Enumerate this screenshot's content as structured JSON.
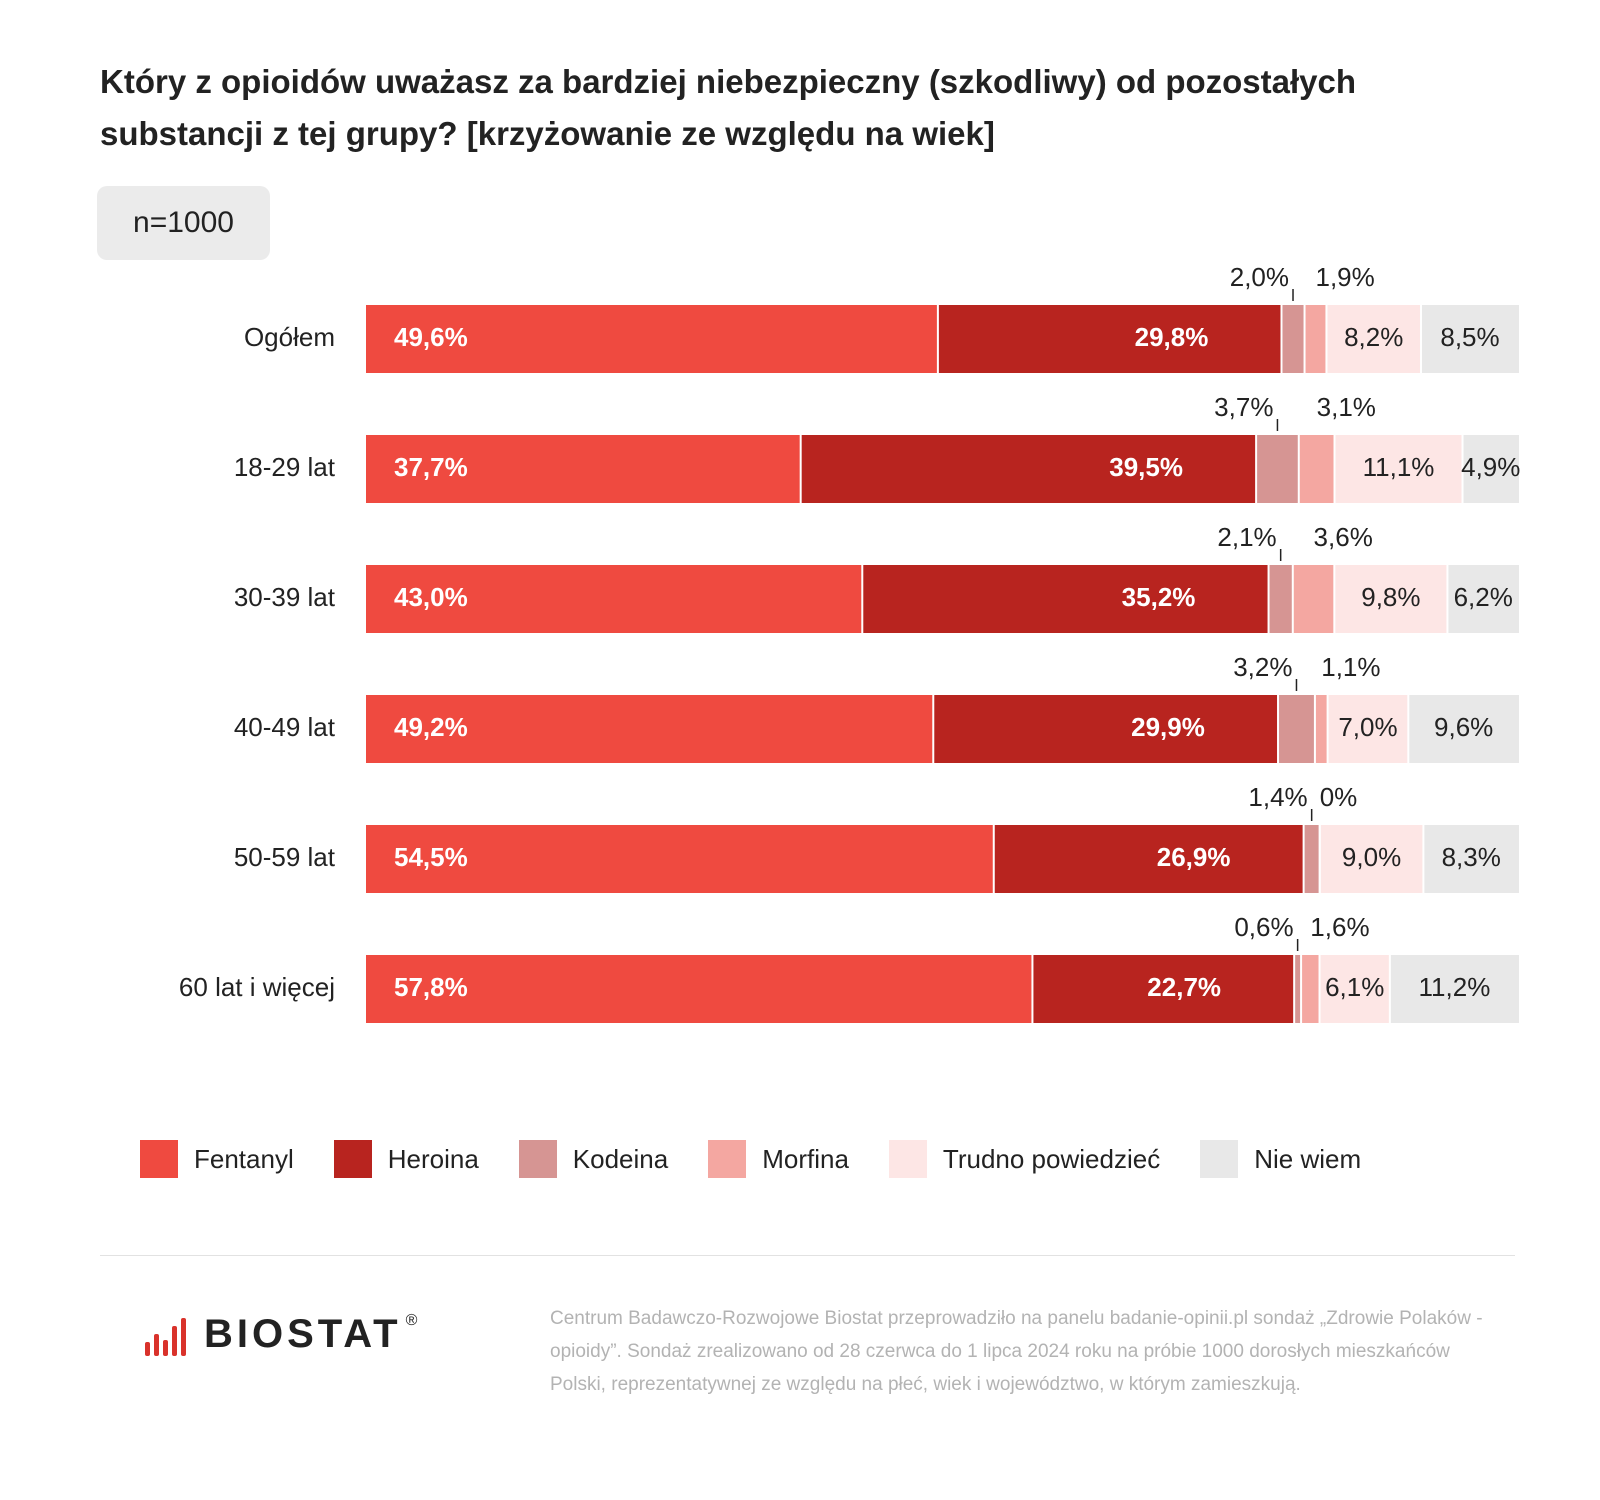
{
  "title": "Który z opioidów uważasz za bardziej niebezpieczny (szkodliwy) od pozostałych substancji z tej grupy? [krzyżowanie ze względu na wiek]",
  "sample_label": "n=1000",
  "chart_data": {
    "type": "bar",
    "orientation": "horizontal",
    "stacked": true,
    "unit": "%",
    "categories": [
      "Ogółem",
      "18-29 lat",
      "30-39 lat",
      "40-49 lat",
      "50-59 lat",
      "60 lat i więcej"
    ],
    "series": [
      {
        "name": "Fentanyl",
        "color": "#ef4a40",
        "values": [
          49.6,
          37.7,
          43.0,
          49.2,
          54.5,
          57.8
        ],
        "labels": [
          "49,6%",
          "37,7%",
          "43,0%",
          "49,2%",
          "54,5%",
          "57,8%"
        ]
      },
      {
        "name": "Heroina",
        "color": "#b8241f",
        "values": [
          29.8,
          39.5,
          35.2,
          29.9,
          26.9,
          22.7
        ],
        "labels": [
          "29,8%",
          "39,5%",
          "35,2%",
          "29,9%",
          "26,9%",
          "22,7%"
        ]
      },
      {
        "name": "Kodeina",
        "color": "#d69593",
        "values": [
          2.0,
          3.7,
          2.1,
          3.2,
          1.4,
          0.6
        ],
        "labels": [
          "2,0%",
          "3,7%",
          "2,1%",
          "3,2%",
          "1,4%",
          "0,6%"
        ]
      },
      {
        "name": "Morfina",
        "color": "#f4a7a1",
        "values": [
          1.9,
          3.1,
          3.6,
          1.1,
          0,
          1.6
        ],
        "labels": [
          "1,9%",
          "3,1%",
          "3,6%",
          "1,1%",
          "0%",
          "1,6%"
        ]
      },
      {
        "name": "Trudno powiedzieć",
        "color": "#fde6e5",
        "values": [
          8.2,
          11.1,
          9.8,
          7.0,
          9.0,
          6.1
        ],
        "labels": [
          "8,2%",
          "11,1%",
          "9,8%",
          "7,0%",
          "9,0%",
          "6,1%"
        ]
      },
      {
        "name": "Nie wiem",
        "color": "#e8e8e8",
        "values": [
          8.5,
          4.9,
          6.2,
          9.6,
          8.3,
          11.2
        ],
        "labels": [
          "8,5%",
          "4,9%",
          "6,2%",
          "9,6%",
          "8,3%",
          "11,2%"
        ]
      }
    ],
    "xlim": [
      0,
      100
    ],
    "legend": "bottom"
  },
  "footnote": "Centrum Badawczo-Rozwojowe Biostat przeprowadziło na panelu badanie-opinii.pl sondaż „Zdrowie Polaków - opioidy”. Sondaż zrealizowano od 28 czerwca do 1 lipca 2024 roku na próbie 1000 dorosłych mieszkańców Polski, reprezentatywnej ze względu na płeć, wiek i województwo, w którym zamieszkują.",
  "logo": {
    "text": "BIOSTAT",
    "reg": "®",
    "color": "#d9322b"
  }
}
